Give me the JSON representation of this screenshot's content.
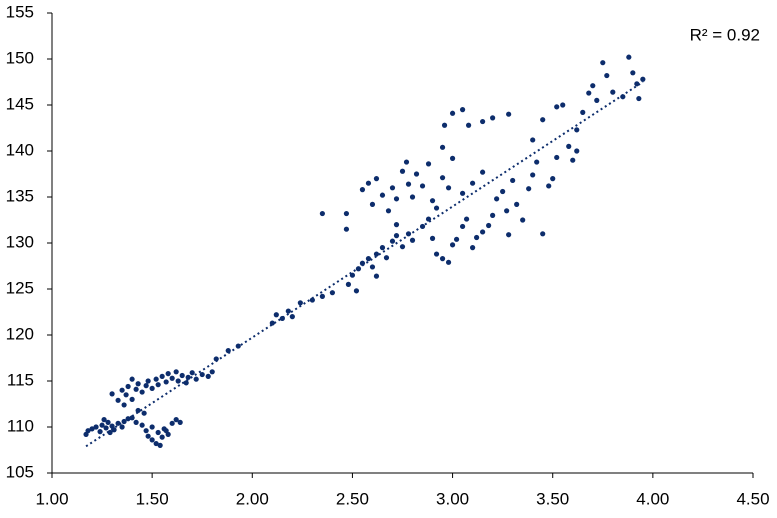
{
  "chart_data": {
    "type": "scatter",
    "annotation": "R² = 0.92",
    "color": "#0d2d6c",
    "xlim": [
      1.0,
      4.5
    ],
    "xticks": [
      {
        "value": 1.0,
        "label": "1.00"
      },
      {
        "value": 1.5,
        "label": "1.50"
      },
      {
        "value": 2.0,
        "label": "2.00"
      },
      {
        "value": 2.5,
        "label": "2.50"
      },
      {
        "value": 3.0,
        "label": "3.00"
      },
      {
        "value": 3.5,
        "label": "3.50"
      },
      {
        "value": 4.0,
        "label": "4.00"
      },
      {
        "value": 4.5,
        "label": "4.50"
      }
    ],
    "ylim": [
      105,
      155
    ],
    "yticks": [
      105,
      110,
      115,
      120,
      125,
      130,
      135,
      140,
      145,
      150,
      155
    ],
    "grid": false,
    "trendline": {
      "x": [
        1.17,
        3.95
      ],
      "y": [
        107.9,
        147.5
      ],
      "style": "dotted"
    },
    "x": [
      1.17,
      1.18,
      1.2,
      1.22,
      1.24,
      1.25,
      1.27,
      1.28,
      1.3,
      1.31,
      1.33,
      1.35,
      1.26,
      1.29,
      1.36,
      1.38,
      1.4,
      1.42,
      1.45,
      1.47,
      1.48,
      1.5,
      1.52,
      1.53,
      1.55,
      1.56,
      1.58,
      1.6,
      1.62,
      1.64,
      1.5,
      1.46,
      1.43,
      1.54,
      1.57,
      1.3,
      1.33,
      1.35,
      1.37,
      1.38,
      1.4,
      1.42,
      1.43,
      1.45,
      1.47,
      1.48,
      1.5,
      1.52,
      1.53,
      1.55,
      1.57,
      1.58,
      1.6,
      1.62,
      1.63,
      1.65,
      1.67,
      1.68,
      1.7,
      1.72,
      1.75,
      1.78,
      1.8,
      1.36,
      1.4,
      1.82,
      1.88,
      1.93,
      2.1,
      2.12,
      2.15,
      2.18,
      2.2,
      2.24,
      2.3,
      2.35,
      2.4,
      2.35,
      2.47,
      2.47,
      2.48,
      2.5,
      2.53,
      2.55,
      2.58,
      2.6,
      2.62,
      2.65,
      2.67,
      2.7,
      2.72,
      2.75,
      2.78,
      2.8,
      2.85,
      2.88,
      2.9,
      2.62,
      2.52,
      2.55,
      2.58,
      2.6,
      2.62,
      2.65,
      2.68,
      2.7,
      2.72,
      2.75,
      2.77,
      2.78,
      2.8,
      2.82,
      2.85,
      2.88,
      2.9,
      2.92,
      2.95,
      2.98,
      3.0,
      2.95,
      2.72,
      2.92,
      2.95,
      2.98,
      3.0,
      3.02,
      3.05,
      3.07,
      3.1,
      3.12,
      3.15,
      3.18,
      3.2,
      3.22,
      3.25,
      3.27,
      3.3,
      3.32,
      3.35,
      3.38,
      3.4,
      3.42,
      3.45,
      3.48,
      3.5,
      3.52,
      3.28,
      3.1,
      3.05,
      3.15,
      3.0,
      3.05,
      3.08,
      3.15,
      3.2,
      3.28,
      2.96,
      3.45,
      3.4,
      3.52,
      3.55,
      3.58,
      3.62,
      3.65,
      3.68,
      3.7,
      3.72,
      3.75,
      3.77,
      3.8,
      3.85,
      3.88,
      3.9,
      3.92,
      3.93,
      3.95,
      3.6,
      3.62
    ],
    "y": [
      109.2,
      109.6,
      109.8,
      110.0,
      109.5,
      110.2,
      109.9,
      110.5,
      110.1,
      109.7,
      110.4,
      110.0,
      110.8,
      109.4,
      110.6,
      110.9,
      111.0,
      110.5,
      110.2,
      109.6,
      109.0,
      108.6,
      108.2,
      109.4,
      108.9,
      109.8,
      109.2,
      110.4,
      110.8,
      110.5,
      110.0,
      111.5,
      111.8,
      108.0,
      109.6,
      113.6,
      112.9,
      114.0,
      113.5,
      114.4,
      113.0,
      114.1,
      114.7,
      113.8,
      114.5,
      115.0,
      114.2,
      115.2,
      114.6,
      115.5,
      114.9,
      115.8,
      115.3,
      116.0,
      115.0,
      115.6,
      114.8,
      115.4,
      115.9,
      115.2,
      115.7,
      115.5,
      116.0,
      112.4,
      115.2,
      117.4,
      118.3,
      118.8,
      121.3,
      122.2,
      121.8,
      122.6,
      122.0,
      123.5,
      123.8,
      124.2,
      124.6,
      133.2,
      133.2,
      131.5,
      125.5,
      126.5,
      127.2,
      127.8,
      128.3,
      127.4,
      128.8,
      129.5,
      128.4,
      130.2,
      130.8,
      129.6,
      131.0,
      130.3,
      131.8,
      132.6,
      130.5,
      126.4,
      124.8,
      135.8,
      136.5,
      134.2,
      137.0,
      135.2,
      133.5,
      136.0,
      134.8,
      137.8,
      138.8,
      136.4,
      135.0,
      137.5,
      136.2,
      138.6,
      134.6,
      133.8,
      137.1,
      136.0,
      139.2,
      140.4,
      132.0,
      128.8,
      128.3,
      127.9,
      129.8,
      130.4,
      131.8,
      132.6,
      129.5,
      130.6,
      131.2,
      131.9,
      133.0,
      134.8,
      135.6,
      133.5,
      136.8,
      134.2,
      132.5,
      135.9,
      137.4,
      138.8,
      131.0,
      136.2,
      137.0,
      139.3,
      130.9,
      136.5,
      135.4,
      137.7,
      144.1,
      144.5,
      142.8,
      143.2,
      143.6,
      144.0,
      142.8,
      143.4,
      141.2,
      144.8,
      145.0,
      140.5,
      142.3,
      144.2,
      146.3,
      147.1,
      145.5,
      149.6,
      148.2,
      146.4,
      145.9,
      150.2,
      148.5,
      147.3,
      145.7,
      147.8,
      139.0,
      140.0
    ]
  }
}
